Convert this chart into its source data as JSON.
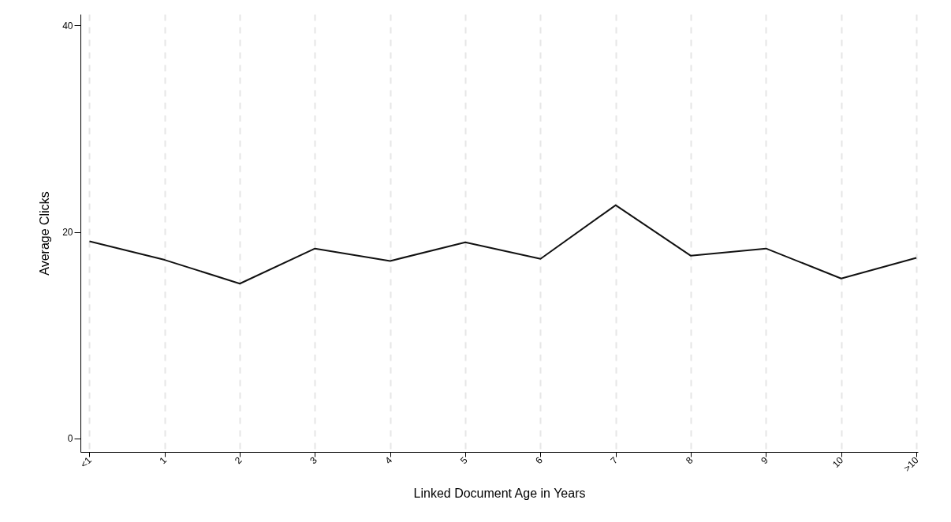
{
  "chart_data": {
    "type": "line",
    "xlabel": "Linked Document Age in Years",
    "ylabel": "Average Clicks",
    "categories": [
      "<1",
      "1",
      "2",
      "3",
      "4",
      "5",
      "6",
      "7",
      "8",
      "9",
      "10",
      ">10"
    ],
    "series": [
      {
        "color": "#111111",
        "values": [
          19.1,
          17.3,
          15.0,
          18.4,
          17.2,
          19.0,
          17.4,
          22.6,
          17.7,
          18.4,
          15.5,
          17.5
        ]
      }
    ],
    "ylim": [
      -1.3,
      41.1
    ],
    "yticks": [
      0,
      20,
      40
    ],
    "grid": "x",
    "marker": "none",
    "line_style": "solid"
  }
}
